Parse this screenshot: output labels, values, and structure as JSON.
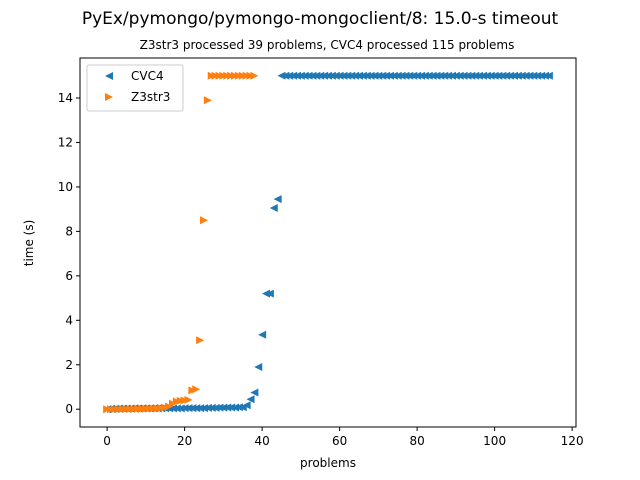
{
  "chart_data": {
    "type": "scatter",
    "title": "PyEx/pymongo/pymongo-mongoclient/8: 15.0-s timeout",
    "subtitle": "Z3str3 processed 39 problems, CVC4 processed 115 problems",
    "xlabel": "problems",
    "ylabel": "time (s)",
    "xlim": [
      -7,
      121
    ],
    "ylim": [
      -0.8,
      15.8
    ],
    "xticks": [
      0,
      20,
      40,
      60,
      80,
      100,
      120
    ],
    "yticks": [
      0,
      2,
      4,
      6,
      8,
      10,
      12,
      14
    ],
    "grid": false,
    "legend_position": "top-left",
    "series": [
      {
        "name": "CVC4",
        "color": "#1f77b4",
        "marker": "triangle-left",
        "values": [
          0.0,
          0.02,
          0.02,
          0.03,
          0.03,
          0.03,
          0.03,
          0.04,
          0.04,
          0.04,
          0.04,
          0.04,
          0.04,
          0.04,
          0.04,
          0.04,
          0.04,
          0.04,
          0.04,
          0.04,
          0.05,
          0.05,
          0.05,
          0.05,
          0.05,
          0.05,
          0.06,
          0.06,
          0.06,
          0.07,
          0.07,
          0.08,
          0.08,
          0.08,
          0.09,
          0.09,
          0.18,
          0.45,
          0.75,
          1.9,
          3.35,
          5.2,
          5.2,
          9.05,
          9.45,
          15.0,
          15.0,
          15.0,
          15.0,
          15.0,
          15.0,
          15.0,
          15.0,
          15.0,
          15.0,
          15.0,
          15.0,
          15.0,
          15.0,
          15.0,
          15.0,
          15.0,
          15.0,
          15.0,
          15.0,
          15.0,
          15.0,
          15.0,
          15.0,
          15.0,
          15.0,
          15.0,
          15.0,
          15.0,
          15.0,
          15.0,
          15.0,
          15.0,
          15.0,
          15.0,
          15.0,
          15.0,
          15.0,
          15.0,
          15.0,
          15.0,
          15.0,
          15.0,
          15.0,
          15.0,
          15.0,
          15.0,
          15.0,
          15.0,
          15.0,
          15.0,
          15.0,
          15.0,
          15.0,
          15.0,
          15.0,
          15.0,
          15.0,
          15.0,
          15.0,
          15.0,
          15.0,
          15.0,
          15.0,
          15.0,
          15.0,
          15.0,
          15.0,
          15.0,
          15.0
        ]
      },
      {
        "name": "Z3str3",
        "color": "#ff7f0e",
        "marker": "triangle-right",
        "values": [
          0.0,
          0.0,
          0.0,
          0.0,
          0.01,
          0.01,
          0.01,
          0.01,
          0.02,
          0.02,
          0.02,
          0.03,
          0.03,
          0.04,
          0.05,
          0.07,
          0.12,
          0.25,
          0.35,
          0.38,
          0.4,
          0.42,
          0.85,
          0.9,
          3.1,
          8.5,
          13.9,
          15.0,
          15.0,
          15.0,
          15.0,
          15.0,
          15.0,
          15.0,
          15.0,
          15.0,
          15.0,
          15.0,
          15.0
        ]
      }
    ]
  }
}
